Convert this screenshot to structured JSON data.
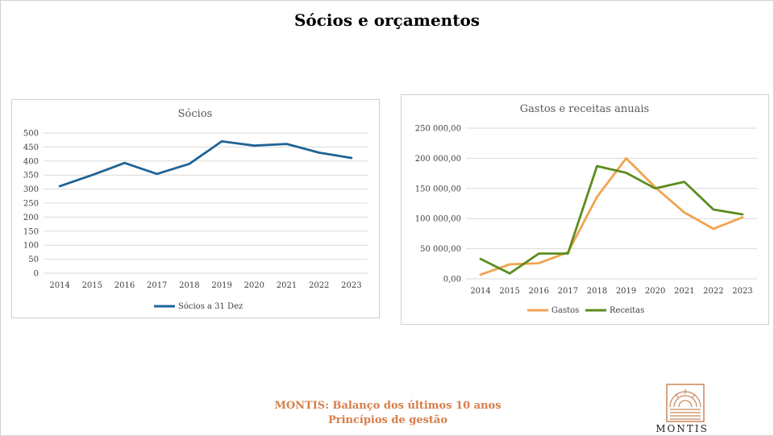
{
  "slide": {
    "title": "Sócios e orçamentos",
    "footer_line1": "MONTIS: Balanço dos últimos 10 anos",
    "footer_line2": "Princípios de gestão",
    "logo_text": "MONTIS",
    "logo_color": "#c8875a",
    "footer_color": "#d87d4a"
  },
  "chart_data": [
    {
      "type": "line",
      "title": "Sócios",
      "x": [
        "2014",
        "2015",
        "2016",
        "2017",
        "2018",
        "2019",
        "2020",
        "2021",
        "2022",
        "2023"
      ],
      "ylim": [
        0,
        500
      ],
      "yticks": [
        "0",
        "50",
        "100",
        "150",
        "200",
        "250",
        "300",
        "350",
        "400",
        "450",
        "500"
      ],
      "grid": true,
      "legend": "bottom",
      "series": [
        {
          "name": "Sócios a 31 Dez",
          "color": "#1f6396",
          "values": [
            310,
            350,
            393,
            354,
            390,
            470,
            455,
            461,
            430,
            411
          ]
        }
      ]
    },
    {
      "type": "line",
      "title": "Gastos e receitas anuais",
      "x": [
        "2014",
        "2015",
        "2016",
        "2017",
        "2018",
        "2019",
        "2020",
        "2021",
        "2022",
        "2023"
      ],
      "ylim": [
        0,
        250000
      ],
      "yticks": [
        "0,00",
        "50 000,00",
        "100 000,00",
        "150 000,00",
        "200 000,00",
        "250 000,00"
      ],
      "grid": true,
      "legend": "bottom",
      "series": [
        {
          "name": "Gastos",
          "color": "#f0a44f",
          "values": [
            7000,
            24000,
            26000,
            44000,
            136000,
            200000,
            152000,
            110000,
            83000,
            102000
          ]
        },
        {
          "name": "Receitas",
          "color": "#5b8c1f",
          "values": [
            33000,
            9000,
            42000,
            42000,
            187000,
            176000,
            150000,
            161000,
            115000,
            107000
          ]
        }
      ]
    }
  ]
}
